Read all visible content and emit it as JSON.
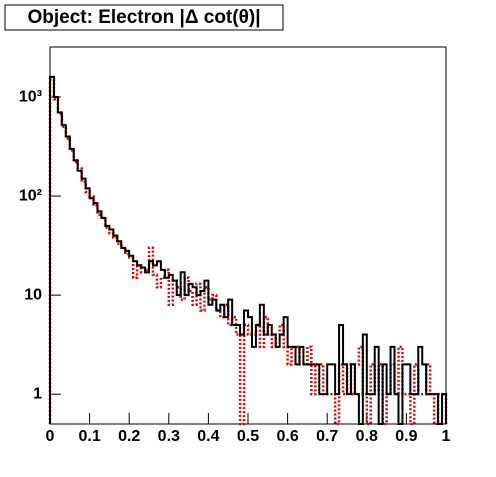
{
  "chart_data": {
    "type": "histogram",
    "title": "Object: Electron |Δ cot(θ)|",
    "log_y": true,
    "bins": [
      0,
      0.01,
      0.02,
      0.03,
      0.04,
      0.05,
      0.06,
      0.07,
      0.08,
      0.09,
      0.1,
      0.11,
      0.12,
      0.13,
      0.14,
      0.15,
      0.16,
      0.17,
      0.18,
      0.19,
      0.2,
      0.21,
      0.22,
      0.23,
      0.24,
      0.25,
      0.26,
      0.27,
      0.28,
      0.29,
      0.3,
      0.31,
      0.32,
      0.33,
      0.34,
      0.35,
      0.36,
      0.37,
      0.38,
      0.39,
      0.4,
      0.41,
      0.42,
      0.43,
      0.44,
      0.45,
      0.46,
      0.47,
      0.48,
      0.49,
      0.5,
      0.51,
      0.52,
      0.53,
      0.54,
      0.55,
      0.56,
      0.57,
      0.58,
      0.59,
      0.6,
      0.61,
      0.62,
      0.63,
      0.64,
      0.65,
      0.66,
      0.67,
      0.68,
      0.69,
      0.7,
      0.71,
      0.72,
      0.73,
      0.74,
      0.75,
      0.76,
      0.77,
      0.78,
      0.79,
      0.8,
      0.81,
      0.82,
      0.83,
      0.84,
      0.85,
      0.86,
      0.87,
      0.88,
      0.89,
      0.9,
      0.91,
      0.92,
      0.93,
      0.94,
      0.95,
      0.96,
      0.97,
      0.98,
      0.99,
      1
    ],
    "series": [
      {
        "color": "#000000",
        "style": "solid",
        "values": [
          1600,
          1000,
          700,
          520,
          400,
          300,
          230,
          180,
          150,
          120,
          95,
          85,
          70,
          60,
          50,
          46,
          40,
          35,
          30,
          28,
          25,
          22,
          20,
          19,
          17,
          22,
          20,
          22,
          18,
          15,
          16,
          14,
          10,
          17,
          10,
          13,
          12,
          10,
          11,
          14,
          8,
          9,
          7,
          8,
          6,
          9,
          5,
          5,
          4,
          7,
          6,
          3,
          5,
          8,
          4,
          5,
          4,
          3,
          4,
          6,
          3,
          3,
          2,
          3,
          2,
          2,
          2,
          2,
          1,
          1,
          2,
          2,
          1,
          5,
          2,
          1,
          2,
          1,
          0,
          4,
          1,
          1,
          3,
          0,
          2,
          1,
          3,
          1,
          0,
          2,
          2,
          1,
          1,
          3,
          2,
          1,
          1,
          1,
          0,
          1
        ]
      },
      {
        "color": "#dd0000",
        "style": "dotted",
        "values": [
          1500,
          950,
          680,
          500,
          380,
          290,
          220,
          190,
          140,
          110,
          100,
          80,
          65,
          60,
          48,
          42,
          38,
          33,
          30,
          26,
          24,
          15,
          20,
          17,
          18,
          30,
          16,
          12,
          15,
          18,
          8,
          14,
          12,
          9,
          15,
          11,
          8,
          13,
          7,
          12,
          9,
          10,
          7,
          6,
          8,
          5,
          6,
          4,
          0,
          5,
          4,
          4,
          5,
          3,
          6,
          4,
          3,
          4,
          5,
          3,
          2,
          3,
          3,
          2,
          2,
          3,
          1,
          2,
          2,
          1,
          1,
          1,
          0,
          2,
          1,
          2,
          1,
          2,
          3,
          1,
          0,
          2,
          1,
          2,
          0,
          1,
          2,
          1,
          3,
          1,
          1,
          0,
          2,
          1,
          1,
          2,
          1,
          0,
          1,
          1
        ]
      }
    ],
    "xlim": [
      0,
      1
    ],
    "xticks": [
      0,
      0.1,
      0.2,
      0.3,
      0.4,
      0.5,
      0.6,
      0.7,
      0.8,
      0.9,
      1
    ],
    "ylim": [
      0.5,
      3200
    ],
    "yticks": [
      1,
      10,
      {
        "value": 100,
        "label": "10²"
      },
      {
        "value": 1000,
        "label": "10³"
      }
    ]
  }
}
